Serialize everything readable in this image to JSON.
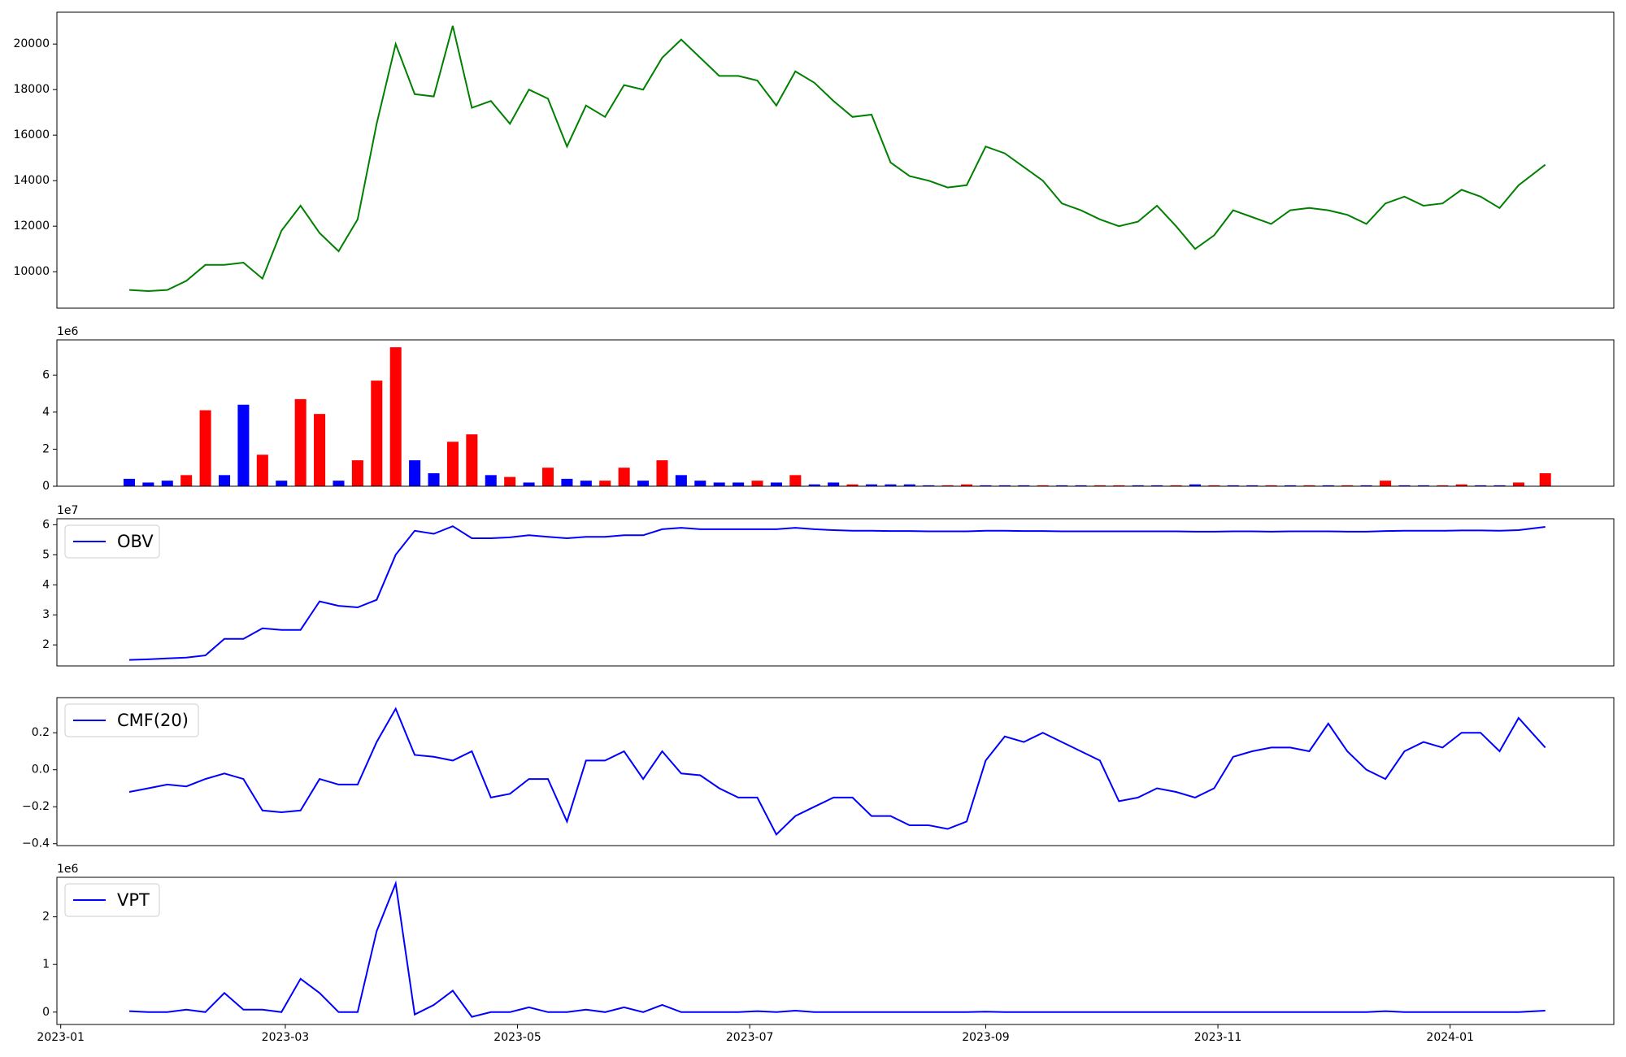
{
  "chart_data": [
    {
      "type": "line",
      "color": "green",
      "x": [
        19376,
        19381,
        19386,
        19391,
        19396,
        19401,
        19406,
        19411,
        19416,
        19421,
        19426,
        19431,
        19436,
        19441,
        19446,
        19451,
        19456,
        19461,
        19466,
        19471,
        19476,
        19481,
        19486,
        19491,
        19496,
        19501,
        19506,
        19511,
        19516,
        19521,
        19526,
        19531,
        19536,
        19541,
        19546,
        19551,
        19556,
        19561,
        19566,
        19571,
        19576,
        19581,
        19586,
        19591,
        19596,
        19601,
        19606,
        19611,
        19616,
        19621,
        19626,
        19631,
        19636,
        19641,
        19646,
        19651,
        19656,
        19661,
        19666,
        19671,
        19676,
        19681,
        19686,
        19691,
        19696,
        19701,
        19706,
        19711,
        19716,
        19721,
        19726,
        19731,
        19736,
        19741,
        19748
      ],
      "values": [
        9200,
        9150,
        9200,
        9600,
        10300,
        10300,
        10400,
        9700,
        11800,
        12900,
        11700,
        10900,
        12300,
        16500,
        20000,
        17800,
        17700,
        20800,
        17200,
        17500,
        16500,
        18000,
        17600,
        15500,
        17300,
        16800,
        18200,
        18000,
        19400,
        20200,
        19400,
        18600,
        18600,
        18400,
        17300,
        18800,
        18300,
        17500,
        16800,
        16900,
        14800,
        14200,
        14000,
        13700,
        13800,
        15500,
        15200,
        14600,
        14000,
        13000,
        12700,
        12300,
        12000,
        12200,
        12900,
        12000,
        11000,
        11600,
        12700,
        12400,
        12100,
        12700,
        12800,
        12700,
        12500,
        12100,
        13000,
        13300,
        12900,
        13000,
        13600,
        13300,
        12800,
        13800,
        14700
      ],
      "xlim": [
        19357,
        19766
      ],
      "ylim": [
        8400,
        21400
      ],
      "yticks": [
        10000,
        12000,
        14000,
        16000,
        18000,
        20000
      ]
    },
    {
      "type": "bar",
      "offset_label": "1e6",
      "x": [
        19376,
        19381,
        19386,
        19391,
        19396,
        19401,
        19406,
        19411,
        19416,
        19421,
        19426,
        19431,
        19436,
        19441,
        19446,
        19451,
        19456,
        19461,
        19466,
        19471,
        19476,
        19481,
        19486,
        19491,
        19496,
        19501,
        19506,
        19511,
        19516,
        19521,
        19526,
        19531,
        19536,
        19541,
        19546,
        19551,
        19556,
        19561,
        19566,
        19571,
        19576,
        19581,
        19586,
        19591,
        19596,
        19601,
        19606,
        19611,
        19616,
        19621,
        19626,
        19631,
        19636,
        19641,
        19646,
        19651,
        19656,
        19661,
        19666,
        19671,
        19676,
        19681,
        19686,
        19691,
        19696,
        19701,
        19706,
        19711,
        19716,
        19721,
        19726,
        19731,
        19736,
        19741,
        19748
      ],
      "values": [
        0.4,
        0.2,
        0.3,
        0.6,
        4.1,
        0.6,
        4.4,
        1.7,
        0.3,
        4.7,
        3.9,
        0.3,
        1.4,
        5.7,
        7.5,
        1.4,
        0.7,
        2.4,
        2.8,
        0.6,
        0.5,
        0.2,
        1.0,
        0.4,
        0.3,
        0.3,
        1.0,
        0.3,
        1.4,
        0.6,
        0.3,
        0.2,
        0.2,
        0.3,
        0.2,
        0.6,
        0.1,
        0.2,
        0.1,
        0.1,
        0.1,
        0.1,
        0.05,
        0.05,
        0.1,
        0.05,
        0.05,
        0.05,
        0.05,
        0.05,
        0.05,
        0.05,
        0.05,
        0.05,
        0.05,
        0.05,
        0.1,
        0.05,
        0.05,
        0.05,
        0.05,
        0.05,
        0.05,
        0.05,
        0.05,
        0.05,
        0.3,
        0.05,
        0.05,
        0.05,
        0.1,
        0.05,
        0.05,
        0.2,
        0.7
      ],
      "colors": [
        "blue",
        "blue",
        "blue",
        "red",
        "red",
        "blue",
        "blue",
        "red",
        "blue",
        "red",
        "red",
        "blue",
        "red",
        "red",
        "red",
        "blue",
        "blue",
        "red",
        "red",
        "blue",
        "red",
        "blue",
        "red",
        "blue",
        "blue",
        "red",
        "red",
        "blue",
        "red",
        "blue",
        "blue",
        "blue",
        "blue",
        "red",
        "blue",
        "red",
        "blue",
        "blue",
        "red",
        "blue",
        "blue",
        "blue",
        "blue",
        "red",
        "red",
        "blue",
        "blue",
        "blue",
        "red",
        "blue",
        "blue",
        "red",
        "red",
        "blue",
        "blue",
        "red",
        "blue",
        "red",
        "blue",
        "blue",
        "red",
        "blue",
        "red",
        "blue",
        "red",
        "blue",
        "red",
        "blue",
        "blue",
        "red",
        "red",
        "blue",
        "blue",
        "red",
        "red"
      ],
      "xlim": [
        19357,
        19766
      ],
      "ylim": [
        0,
        7.9
      ],
      "yticks": [
        0,
        2,
        4,
        6
      ]
    },
    {
      "type": "line",
      "offset_label": "1e7",
      "legend": "upper left",
      "x": [
        19376,
        19381,
        19386,
        19391,
        19396,
        19401,
        19406,
        19411,
        19416,
        19421,
        19426,
        19431,
        19436,
        19441,
        19446,
        19451,
        19456,
        19461,
        19466,
        19471,
        19476,
        19481,
        19486,
        19491,
        19496,
        19501,
        19506,
        19511,
        19516,
        19521,
        19526,
        19531,
        19536,
        19541,
        19546,
        19551,
        19556,
        19561,
        19566,
        19571,
        19576,
        19581,
        19586,
        19591,
        19596,
        19601,
        19606,
        19611,
        19616,
        19621,
        19626,
        19631,
        19636,
        19641,
        19646,
        19651,
        19656,
        19661,
        19666,
        19671,
        19676,
        19681,
        19686,
        19691,
        19696,
        19701,
        19706,
        19711,
        19716,
        19721,
        19726,
        19731,
        19736,
        19741,
        19748
      ],
      "series": [
        {
          "name": "OBV",
          "color": "blue",
          "values": [
            1.5,
            1.52,
            1.55,
            1.58,
            1.65,
            2.2,
            2.2,
            2.55,
            2.5,
            2.5,
            3.45,
            3.3,
            3.25,
            3.5,
            5.0,
            5.8,
            5.7,
            5.95,
            5.55,
            5.55,
            5.58,
            5.65,
            5.6,
            5.55,
            5.6,
            5.6,
            5.65,
            5.65,
            5.85,
            5.9,
            5.85,
            5.85,
            5.85,
            5.85,
            5.85,
            5.9,
            5.85,
            5.82,
            5.8,
            5.8,
            5.79,
            5.79,
            5.78,
            5.78,
            5.78,
            5.8,
            5.8,
            5.79,
            5.79,
            5.78,
            5.78,
            5.78,
            5.78,
            5.78,
            5.78,
            5.78,
            5.77,
            5.77,
            5.78,
            5.78,
            5.77,
            5.78,
            5.78,
            5.78,
            5.77,
            5.77,
            5.79,
            5.8,
            5.8,
            5.8,
            5.81,
            5.81,
            5.8,
            5.82,
            5.93
          ]
        }
      ],
      "xlim": [
        19357,
        19766
      ],
      "ylim": [
        1.3,
        6.2
      ],
      "yticks": [
        2,
        3,
        4,
        5,
        6
      ]
    },
    {
      "type": "line",
      "legend": "upper left",
      "x": [
        19376,
        19381,
        19386,
        19391,
        19396,
        19401,
        19406,
        19411,
        19416,
        19421,
        19426,
        19431,
        19436,
        19441,
        19446,
        19451,
        19456,
        19461,
        19466,
        19471,
        19476,
        19481,
        19486,
        19491,
        19496,
        19501,
        19506,
        19511,
        19516,
        19521,
        19526,
        19531,
        19536,
        19541,
        19546,
        19551,
        19556,
        19561,
        19566,
        19571,
        19576,
        19581,
        19586,
        19591,
        19596,
        19601,
        19606,
        19611,
        19616,
        19621,
        19626,
        19631,
        19636,
        19641,
        19646,
        19651,
        19656,
        19661,
        19666,
        19671,
        19676,
        19681,
        19686,
        19691,
        19696,
        19701,
        19706,
        19711,
        19716,
        19721,
        19726,
        19731,
        19736,
        19741,
        19748
      ],
      "series": [
        {
          "name": "CMF(20)",
          "color": "blue",
          "values": [
            -0.12,
            -0.1,
            -0.08,
            -0.09,
            -0.05,
            -0.02,
            -0.05,
            -0.22,
            -0.23,
            -0.22,
            -0.05,
            -0.08,
            -0.08,
            0.15,
            0.33,
            0.08,
            0.07,
            0.05,
            0.1,
            -0.15,
            -0.13,
            -0.05,
            -0.05,
            -0.28,
            0.05,
            0.05,
            0.1,
            -0.05,
            0.1,
            -0.02,
            -0.03,
            -0.1,
            -0.15,
            -0.15,
            -0.35,
            -0.25,
            -0.2,
            -0.15,
            -0.15,
            -0.25,
            -0.25,
            -0.3,
            -0.3,
            -0.32,
            -0.28,
            0.05,
            0.18,
            0.15,
            0.2,
            0.15,
            0.1,
            0.05,
            -0.17,
            -0.15,
            -0.1,
            -0.12,
            -0.15,
            -0.1,
            0.07,
            0.1,
            0.12,
            0.12,
            0.1,
            0.25,
            0.1,
            0.0,
            -0.05,
            0.1,
            0.15,
            0.12,
            0.2,
            0.2,
            0.1,
            0.28,
            0.12
          ]
        }
      ],
      "xlim": [
        19357,
        19766
      ],
      "ylim": [
        -0.41,
        0.39
      ],
      "yticks": [
        {
          "value": -0.4,
          "label": "−0.4"
        },
        {
          "value": -0.2,
          "label": "−0.2"
        },
        {
          "value": 0,
          "label": "0.0"
        },
        0.2
      ]
    },
    {
      "type": "line",
      "offset_label": "1e6",
      "legend": "upper left",
      "x": [
        19376,
        19381,
        19386,
        19391,
        19396,
        19401,
        19406,
        19411,
        19416,
        19421,
        19426,
        19431,
        19436,
        19441,
        19446,
        19451,
        19456,
        19461,
        19466,
        19471,
        19476,
        19481,
        19486,
        19491,
        19496,
        19501,
        19506,
        19511,
        19516,
        19521,
        19526,
        19531,
        19536,
        19541,
        19546,
        19551,
        19556,
        19561,
        19566,
        19571,
        19576,
        19581,
        19586,
        19591,
        19596,
        19601,
        19606,
        19611,
        19616,
        19621,
        19626,
        19631,
        19636,
        19641,
        19646,
        19651,
        19656,
        19661,
        19666,
        19671,
        19676,
        19681,
        19686,
        19691,
        19696,
        19701,
        19706,
        19711,
        19716,
        19721,
        19726,
        19731,
        19736,
        19741,
        19748
      ],
      "series": [
        {
          "name": "VPT",
          "color": "blue",
          "values": [
            0.02,
            0.0,
            0.0,
            0.05,
            0.0,
            0.4,
            0.05,
            0.05,
            0.0,
            0.7,
            0.4,
            0.0,
            0.0,
            1.7,
            2.7,
            -0.05,
            0.15,
            0.45,
            -0.1,
            0.0,
            0.0,
            0.1,
            0.0,
            0.0,
            0.05,
            0.0,
            0.1,
            0.0,
            0.15,
            0.0,
            0.0,
            0.0,
            0.0,
            0.02,
            0.0,
            0.03,
            0.0,
            0.0,
            0.0,
            0.0,
            0.0,
            0.0,
            0.0,
            0.0,
            0.0,
            0.01,
            0.0,
            0.0,
            0.0,
            0.0,
            0.0,
            0.0,
            0.0,
            0.0,
            0.0,
            0.0,
            0.0,
            0.0,
            0.0,
            0.0,
            0.0,
            0.0,
            0.0,
            0.0,
            0.0,
            0.0,
            0.02,
            0.0,
            0.0,
            0.0,
            0.0,
            0.0,
            0.0,
            0.0,
            0.03
          ]
        }
      ],
      "xlim": [
        19357,
        19766
      ],
      "ylim": [
        -0.26,
        2.83
      ],
      "yticks": [
        0,
        1,
        2
      ],
      "xticks": [
        {
          "value": 19358,
          "label": "2023-01"
        },
        {
          "value": 19417,
          "label": "2023-03"
        },
        {
          "value": 19478,
          "label": "2023-05"
        },
        {
          "value": 19539,
          "label": "2023-07"
        },
        {
          "value": 19601,
          "label": "2023-09"
        },
        {
          "value": 19662,
          "label": "2023-11"
        },
        {
          "value": 19723,
          "label": "2024-01"
        }
      ]
    }
  ]
}
